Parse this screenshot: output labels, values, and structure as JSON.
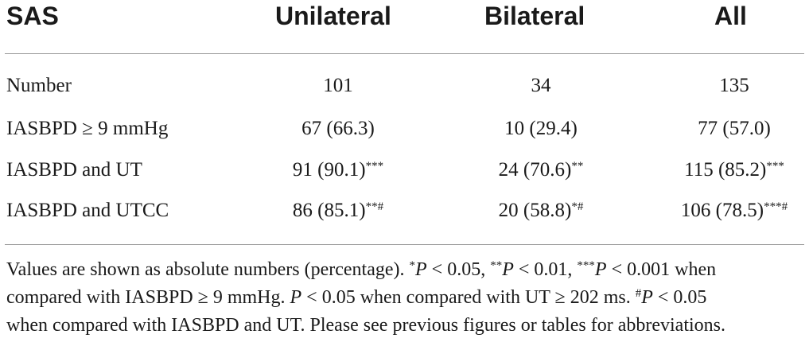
{
  "table": {
    "headers": [
      "SAS",
      "Unilateral",
      "Bilateral",
      "All"
    ],
    "rows": [
      {
        "label": "Number",
        "cells": [
          {
            "value": "101",
            "sup": ""
          },
          {
            "value": "34",
            "sup": ""
          },
          {
            "value": "135",
            "sup": ""
          }
        ]
      },
      {
        "label": "IASBPD ≥ 9 mmHg",
        "cells": [
          {
            "value": "67 (66.3)",
            "sup": ""
          },
          {
            "value": "10 (29.4)",
            "sup": ""
          },
          {
            "value": "77 (57.0)",
            "sup": ""
          }
        ]
      },
      {
        "label": "IASBPD and UT",
        "cells": [
          {
            "value": "91 (90.1)",
            "sup": "***"
          },
          {
            "value": "24 (70.6)",
            "sup": "**"
          },
          {
            "value": "115 (85.2)",
            "sup": "***"
          }
        ]
      },
      {
        "label": "IASBPD and UTCC",
        "cells": [
          {
            "value": "86 (85.1)",
            "sup": "**#"
          },
          {
            "value": "20 (58.8)",
            "sup": "*#"
          },
          {
            "value": "106 (78.5)",
            "sup": "***#"
          }
        ]
      }
    ]
  },
  "footnote": {
    "l1_a": "Values are shown as absolute numbers (percentage). ",
    "l1_s1": "*",
    "l1_p1": "P",
    "l1_b": " < 0.05, ",
    "l1_s2": "**",
    "l1_p2": "P",
    "l1_c": " < 0.01, ",
    "l1_s3": "***",
    "l1_p3": "P",
    "l1_d": " < 0.001 when",
    "l2_a": "compared with IASBPD ≥ 9 mmHg. ",
    "l2_p": "P",
    "l2_b": " < 0.05 when compared with UT ≥ 202 ms. ",
    "l2_s": "#",
    "l2_p2": "P",
    "l2_c": " < 0.05",
    "l3": "when compared with IASBPD and UT. Please see previous figures or tables for abbreviations."
  }
}
